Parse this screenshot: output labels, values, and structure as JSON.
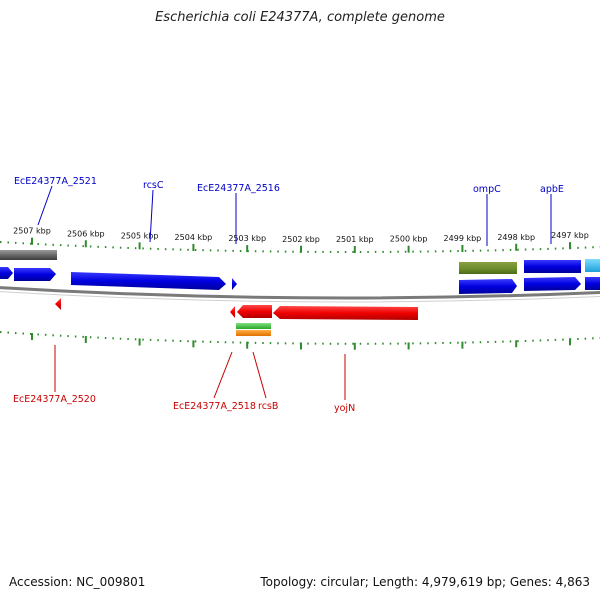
{
  "title": "Escherichia coli E24377A, complete genome",
  "footer": {
    "accession": "Accession: NC_009801",
    "summary": "Topology: circular; Length: 4,979,619 bp; Genes: 4,863"
  },
  "colors": {
    "forward_label": "#0000c8",
    "reverse_label": "#c80000",
    "tick": "#2e8b2e",
    "backbone": "#888888"
  },
  "ticks": [
    {
      "kbp": 2507,
      "label": "2507 kbp"
    },
    {
      "kbp": 2506,
      "label": "2506 kbp"
    },
    {
      "kbp": 2505,
      "label": "2505 kbp"
    },
    {
      "kbp": 2504,
      "label": "2504 kbp"
    },
    {
      "kbp": 2503,
      "label": "2503 kbp"
    },
    {
      "kbp": 2502,
      "label": "2502 kbp"
    },
    {
      "kbp": 2501,
      "label": "2501 kbp"
    },
    {
      "kbp": 2500,
      "label": "2500 kbp"
    },
    {
      "kbp": 2499,
      "label": "2499 kbp"
    },
    {
      "kbp": 2498,
      "label": "2498 kbp"
    },
    {
      "kbp": 2497,
      "label": "2497 kbp"
    }
  ],
  "forward_labels": [
    "EcE24377A_2521",
    "rcsC",
    "EcE24377A_2516",
    "ompC",
    "apbE"
  ],
  "reverse_labels": [
    "EcE24377A_2520",
    "EcE24377A_2518",
    "rcsB",
    "yojN"
  ]
}
